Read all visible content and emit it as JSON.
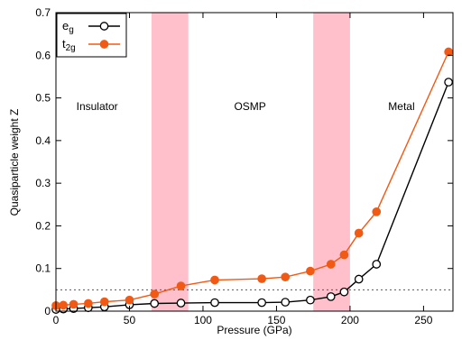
{
  "chart_data": {
    "type": "line",
    "xlabel": "Pressure (GPa)",
    "ylabel": "Quasiparticle weight Z",
    "xlim": [
      0,
      270
    ],
    "ylim": [
      0,
      0.7
    ],
    "xticks": [
      0,
      50,
      100,
      150,
      200,
      250
    ],
    "yticks": [
      0,
      0.1,
      0.2,
      0.3,
      0.4,
      0.5,
      0.6,
      0.7
    ],
    "xtick_labels": [
      "0",
      "50",
      "100",
      "150",
      "200",
      "250"
    ],
    "ytick_labels": [
      "0",
      "0.1",
      "0.2",
      "0.3",
      "0.4",
      "0.5",
      "0.6",
      "0.7"
    ],
    "legend_position": "top-left",
    "reference_line": {
      "y": 0.05,
      "style": "dotted",
      "color": "#555555"
    },
    "shaded_regions": [
      {
        "x0": 65,
        "x1": 90,
        "color": "#ffc0cb"
      },
      {
        "x0": 175,
        "x1": 200,
        "color": "#ffc0cb"
      }
    ],
    "region_labels": [
      {
        "text": "Insulator",
        "x": 28,
        "y": 0.48
      },
      {
        "text": "OSMP",
        "x": 132,
        "y": 0.48
      },
      {
        "text": "Metal",
        "x": 235,
        "y": 0.48
      }
    ],
    "series": [
      {
        "name": "e",
        "name_subscript": "g",
        "color": "#000000",
        "marker": "open-circle",
        "x": [
          0,
          5,
          12,
          22,
          33,
          50,
          67,
          85,
          108,
          140,
          156,
          173,
          187,
          196,
          206,
          218,
          267
        ],
        "y": [
          0.004,
          0.005,
          0.006,
          0.008,
          0.01,
          0.015,
          0.018,
          0.019,
          0.02,
          0.02,
          0.021,
          0.026,
          0.034,
          0.045,
          0.075,
          0.11,
          0.537
        ]
      },
      {
        "name": "t",
        "name_subscript": "2g",
        "color": "#f05a14",
        "marker": "filled-circle",
        "x": [
          0,
          5,
          12,
          22,
          33,
          50,
          67,
          85,
          108,
          140,
          156,
          173,
          187,
          196,
          206,
          218,
          267
        ],
        "y": [
          0.013,
          0.014,
          0.016,
          0.018,
          0.022,
          0.026,
          0.04,
          0.059,
          0.073,
          0.076,
          0.08,
          0.094,
          0.11,
          0.132,
          0.183,
          0.233,
          0.608
        ]
      }
    ]
  }
}
